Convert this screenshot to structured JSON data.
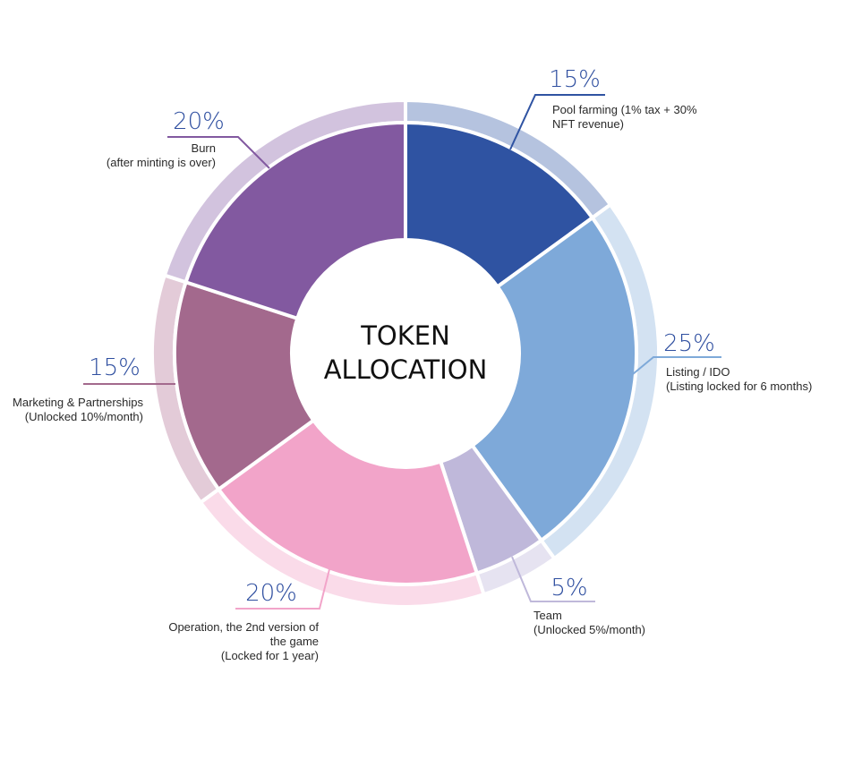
{
  "chart_data": {
    "type": "pie",
    "title": "TOKEN ALLOCATION",
    "title_lines": [
      "TOKEN",
      "ALLOCATION"
    ],
    "slices": [
      {
        "value": 15,
        "percent_label": "15%",
        "label_lines": [
          "Pool farming (1% tax + 30%",
          "NFT revenue)"
        ],
        "color": "#2f53a2",
        "ring_color": "#b5c3df"
      },
      {
        "value": 25,
        "percent_label": "25%",
        "label_lines": [
          "Listing / IDO",
          "(Listing locked for 6 months)"
        ],
        "color": "#7ea9d9",
        "ring_color": "#d3e2f2"
      },
      {
        "value": 5,
        "percent_label": "5%",
        "label_lines": [
          "Team",
          "(Unlocked 5%/month)"
        ],
        "color": "#bfb8da",
        "ring_color": "#e6e3f1"
      },
      {
        "value": 20,
        "percent_label": "20%",
        "label_lines": [
          "Operation, the 2nd version of",
          "the game",
          "(Locked for 1 year)"
        ],
        "color": "#f2a4c9",
        "ring_color": "#fadbe9"
      },
      {
        "value": 15,
        "percent_label": "15%",
        "label_lines": [
          "Marketing & Partnerships",
          "(Unlocked 10%/month)"
        ],
        "color": "#a3698d",
        "ring_color": "#e3cbd8"
      },
      {
        "value": 20,
        "percent_label": "20%",
        "label_lines": [
          "Burn",
          "(after minting is over)"
        ],
        "color": "#8259a0",
        "ring_color": "#d2c3de"
      }
    ]
  }
}
